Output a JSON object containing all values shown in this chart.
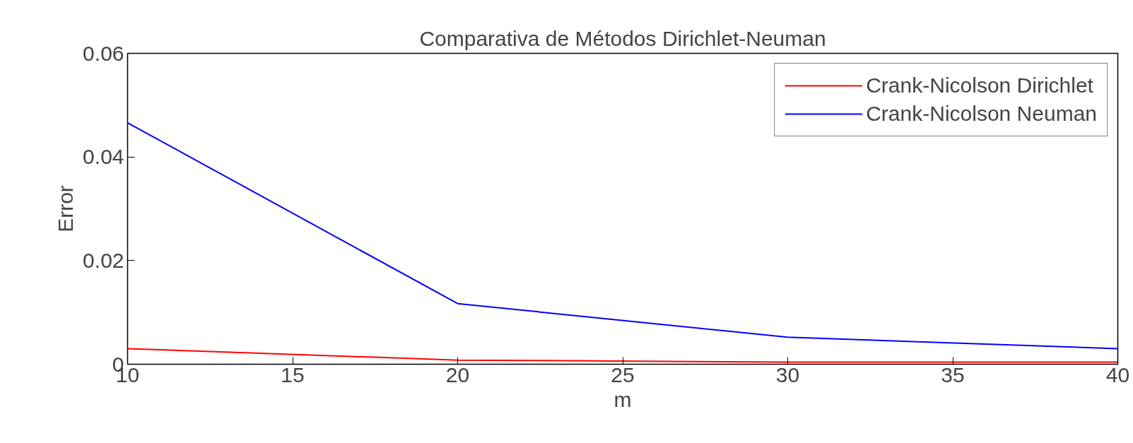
{
  "chart_data": {
    "type": "line",
    "title": "Comparativa de Métodos Dirichlet-Neuman",
    "xlabel": "m",
    "ylabel": "Error",
    "x": [
      10,
      20,
      30,
      40
    ],
    "series": [
      {
        "name": "Crank-Nicolson Dirichlet",
        "color": "#ff0000",
        "values": [
          0.003,
          0.0008,
          0.0004,
          0.0004
        ]
      },
      {
        "name": "Crank-Nicolson Neuman",
        "color": "#0000ff",
        "values": [
          0.0466,
          0.0117,
          0.0052,
          0.003
        ]
      }
    ],
    "xlim": [
      10,
      40
    ],
    "xticks": [
      10,
      15,
      20,
      25,
      30,
      35,
      40
    ],
    "ylim": [
      0,
      0.06
    ],
    "yticks": [
      0,
      0.02,
      0.04,
      0.06
    ],
    "grid": false,
    "legend": "top right",
    "line_style": "solid"
  }
}
